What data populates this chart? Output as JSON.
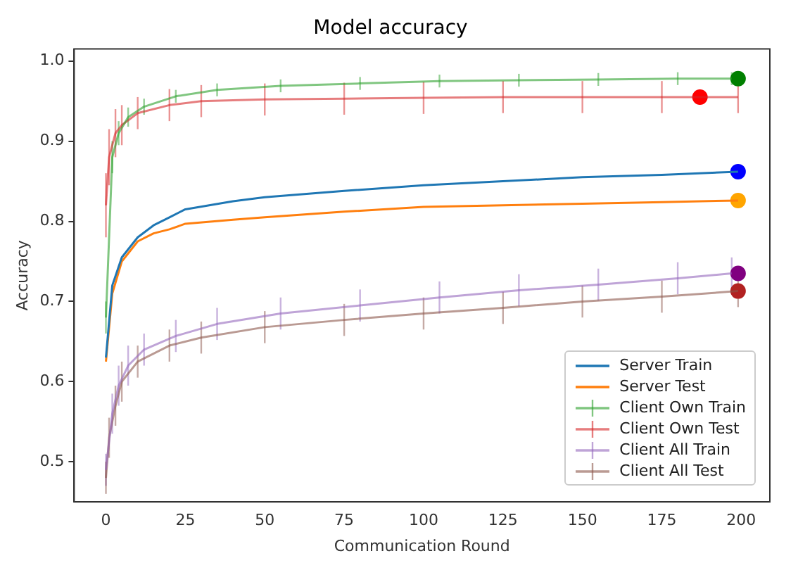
{
  "chart_data": {
    "type": "line",
    "title": "Model accuracy",
    "xlabel": "Communication Round",
    "ylabel": "Accuracy",
    "xlim": [
      -10,
      209
    ],
    "xticks": [
      0,
      25,
      50,
      75,
      100,
      125,
      150,
      175,
      200
    ],
    "ylim": [
      0.45,
      1.015
    ],
    "yticks": [
      {
        "value": 0.5,
        "label": "0.5"
      },
      {
        "value": 0.6,
        "label": "0.6"
      },
      {
        "value": 0.7,
        "label": "0.7"
      },
      {
        "value": 0.8,
        "label": "0.8"
      },
      {
        "value": 0.9,
        "label": "0.9"
      },
      {
        "value": 1,
        "label": "1.0"
      }
    ],
    "grid": false,
    "legend": "bottom right",
    "series": [
      {
        "name": "Server Train",
        "color": "#1f77b4",
        "x": [
          0,
          2,
          5,
          10,
          15,
          20,
          25,
          40,
          50,
          75,
          100,
          125,
          150,
          175,
          199
        ],
        "values": [
          0.63,
          0.72,
          0.755,
          0.78,
          0.795,
          0.805,
          0.815,
          0.825,
          0.83,
          0.838,
          0.845,
          0.85,
          0.855,
          0.858,
          0.862
        ]
      },
      {
        "name": "Server Test",
        "color": "#ff7f0e",
        "x": [
          0,
          2,
          5,
          10,
          15,
          20,
          25,
          40,
          50,
          75,
          100,
          125,
          150,
          175,
          199
        ],
        "values": [
          0.625,
          0.71,
          0.75,
          0.775,
          0.785,
          0.79,
          0.797,
          0.802,
          0.805,
          0.812,
          0.818,
          0.82,
          0.822,
          0.824,
          0.826
        ]
      },
      {
        "name": "Client Own Train",
        "color": "#2ca02c",
        "x": [
          0,
          2,
          4,
          7,
          12,
          22,
          35,
          55,
          80,
          105,
          130,
          155,
          180,
          197
        ],
        "values": [
          0.68,
          0.88,
          0.91,
          0.93,
          0.943,
          0.956,
          0.964,
          0.969,
          0.972,
          0.975,
          0.976,
          0.977,
          0.978,
          0.978
        ],
        "errors": [
          0.02,
          0.02,
          0.015,
          0.012,
          0.01,
          0.008,
          0.008,
          0.008,
          0.008,
          0.008,
          0.008,
          0.008,
          0.008,
          0.008
        ]
      },
      {
        "name": "Client Own Test",
        "color": "#d62728",
        "x": [
          0,
          1,
          3,
          5,
          10,
          20,
          30,
          50,
          75,
          100,
          125,
          150,
          175,
          199
        ],
        "values": [
          0.82,
          0.88,
          0.91,
          0.92,
          0.935,
          0.945,
          0.95,
          0.952,
          0.953,
          0.954,
          0.955,
          0.955,
          0.955,
          0.955
        ],
        "errors": [
          0.04,
          0.035,
          0.03,
          0.025,
          0.02,
          0.02,
          0.02,
          0.02,
          0.02,
          0.02,
          0.02,
          0.02,
          0.02,
          0.02
        ]
      },
      {
        "name": "Client All Train",
        "color": "#9467bd",
        "x": [
          0,
          2,
          4,
          7,
          12,
          22,
          35,
          55,
          80,
          105,
          130,
          155,
          180,
          197
        ],
        "values": [
          0.49,
          0.56,
          0.595,
          0.62,
          0.64,
          0.657,
          0.672,
          0.685,
          0.695,
          0.705,
          0.714,
          0.721,
          0.729,
          0.735
        ],
        "errors": [
          0.02,
          0.025,
          0.025,
          0.025,
          0.02,
          0.02,
          0.02,
          0.02,
          0.02,
          0.02,
          0.02,
          0.02,
          0.02,
          0.02
        ]
      },
      {
        "name": "Client All Test",
        "color": "#8c564b",
        "x": [
          0,
          1,
          3,
          5,
          10,
          20,
          30,
          50,
          75,
          100,
          125,
          150,
          175,
          199
        ],
        "values": [
          0.48,
          0.53,
          0.57,
          0.6,
          0.625,
          0.645,
          0.655,
          0.668,
          0.677,
          0.685,
          0.692,
          0.7,
          0.706,
          0.713
        ],
        "errors": [
          0.02,
          0.025,
          0.025,
          0.025,
          0.02,
          0.02,
          0.02,
          0.02,
          0.02,
          0.02,
          0.02,
          0.02,
          0.02,
          0.02
        ]
      },
      {
        "type": "scatter",
        "marker": "circle",
        "color": "#008000",
        "x": [
          199
        ],
        "values": [
          0.978
        ]
      },
      {
        "type": "scatter",
        "marker": "circle",
        "color": "#ff0000",
        "x": [
          187
        ],
        "values": [
          0.955
        ]
      },
      {
        "type": "scatter",
        "marker": "circle",
        "color": "#0000ff",
        "x": [
          199
        ],
        "values": [
          0.862
        ]
      },
      {
        "type": "scatter",
        "marker": "circle",
        "color": "#ffa500",
        "x": [
          199
        ],
        "values": [
          0.826
        ]
      },
      {
        "type": "scatter",
        "marker": "circle",
        "color": "#800080",
        "x": [
          199
        ],
        "values": [
          0.735
        ]
      },
      {
        "type": "scatter",
        "marker": "circle",
        "color": "#b22222",
        "x": [
          199
        ],
        "values": [
          0.713
        ]
      }
    ]
  }
}
